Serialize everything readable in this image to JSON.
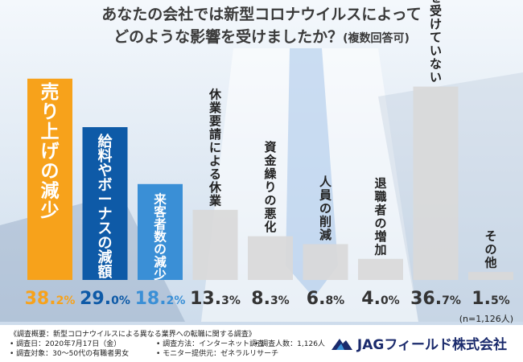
{
  "header": {
    "title_line1": "あなたの会社では新型コロナウイルスによって",
    "title_line2": "どのような影響を受けましたか？",
    "title_note": "(複数回答可)"
  },
  "chart_data": {
    "type": "bar",
    "categories": [
      "売り上げの減少",
      "給料やボーナスの減額",
      "来客者数の減少",
      "休業要請による休業",
      "資金繰りの悪化",
      "人員の削減",
      "退職者の増加",
      "影響を受けていない",
      "その他"
    ],
    "values": [
      38.2,
      29.0,
      18.2,
      13.3,
      8.3,
      6.8,
      4.0,
      36.7,
      1.5
    ],
    "value_labels": [
      "38.2",
      "29.0",
      "18.2",
      "13.3",
      "8.3",
      "6.8",
      "4.0",
      "36.7",
      "1.5"
    ],
    "unit": "%",
    "colors": [
      "#f7a21b",
      "#0e5aa7",
      "#3a8fd6",
      "#d9d9d9",
      "#d9d9d9",
      "#d9d9d9",
      "#d9d9d9",
      "#d9d9d9",
      "#d9d9d9"
    ],
    "label_colors": [
      "#f7a21b",
      "#0e5aa7",
      "#3a8fd6",
      "#333333",
      "#333333",
      "#333333",
      "#333333",
      "#333333",
      "#333333"
    ],
    "highlight_text_color": "#ffffff",
    "ylim": [
      0,
      40
    ]
  },
  "sample_size": "(n=1,126人)",
  "notes": {
    "heading": "《調査概要：新型コロナウイルスによる異なる業界への転職に関する調査》",
    "date": "• 調査日：2020年7月17日（金）",
    "method": "• 調査方法：インターネット調査",
    "count": "• 調査人数：1,126人",
    "target": "• 調査対象：30～50代の有職者男女",
    "provider": "• モニター提供元：ゼネラルリサーチ"
  },
  "brand": {
    "name": "JAGフィールド株式会社",
    "color": "#1a2a6c"
  }
}
